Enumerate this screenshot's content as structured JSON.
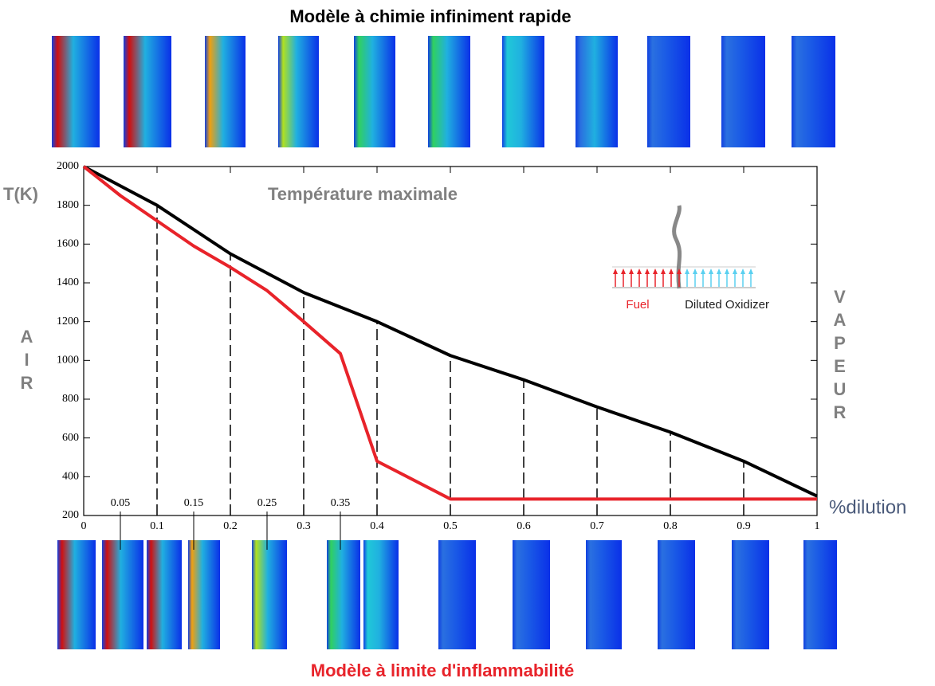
{
  "chart_data": {
    "type": "line",
    "title": "Modèle à chimie infiniment rapide",
    "subtitle": "Modèle à limite d'inflammabilité",
    "annotation": "Température maximale",
    "y_label": "T(K)",
    "x_label": "%dilution",
    "left_label": "AIR",
    "right_label": "VAPEUR",
    "inset_labels": [
      "Fuel",
      "Diluted Oxidizer"
    ],
    "xlim": [
      0,
      1
    ],
    "ylim": [
      200,
      2000
    ],
    "xticks": [
      0,
      0.1,
      0.2,
      0.3,
      0.4,
      0.5,
      0.6,
      0.7,
      0.8,
      0.9,
      1
    ],
    "minor_xticks": [
      0.05,
      0.15,
      0.25,
      0.35
    ],
    "yticks": [
      200,
      400,
      600,
      800,
      1000,
      1200,
      1400,
      1600,
      1800,
      2000
    ],
    "series": [
      {
        "color": "#000000",
        "x": [
          0,
          0.1,
          0.2,
          0.3,
          0.4,
          0.5,
          0.6,
          0.7,
          0.8,
          0.9,
          1
        ],
        "values": [
          2000,
          1800,
          1550,
          1350,
          1200,
          1025,
          900,
          760,
          630,
          480,
          300
        ]
      },
      {
        "color": "#e8232a",
        "x": [
          0,
          0.05,
          0.1,
          0.15,
          0.2,
          0.25,
          0.3,
          0.35,
          0.4,
          0.5,
          0.6,
          0.7,
          0.8,
          0.9,
          1
        ],
        "values": [
          2000,
          1850,
          1720,
          1590,
          1480,
          1360,
          1200,
          1035,
          480,
          285,
          285,
          285,
          285,
          285,
          285
        ]
      }
    ]
  }
}
